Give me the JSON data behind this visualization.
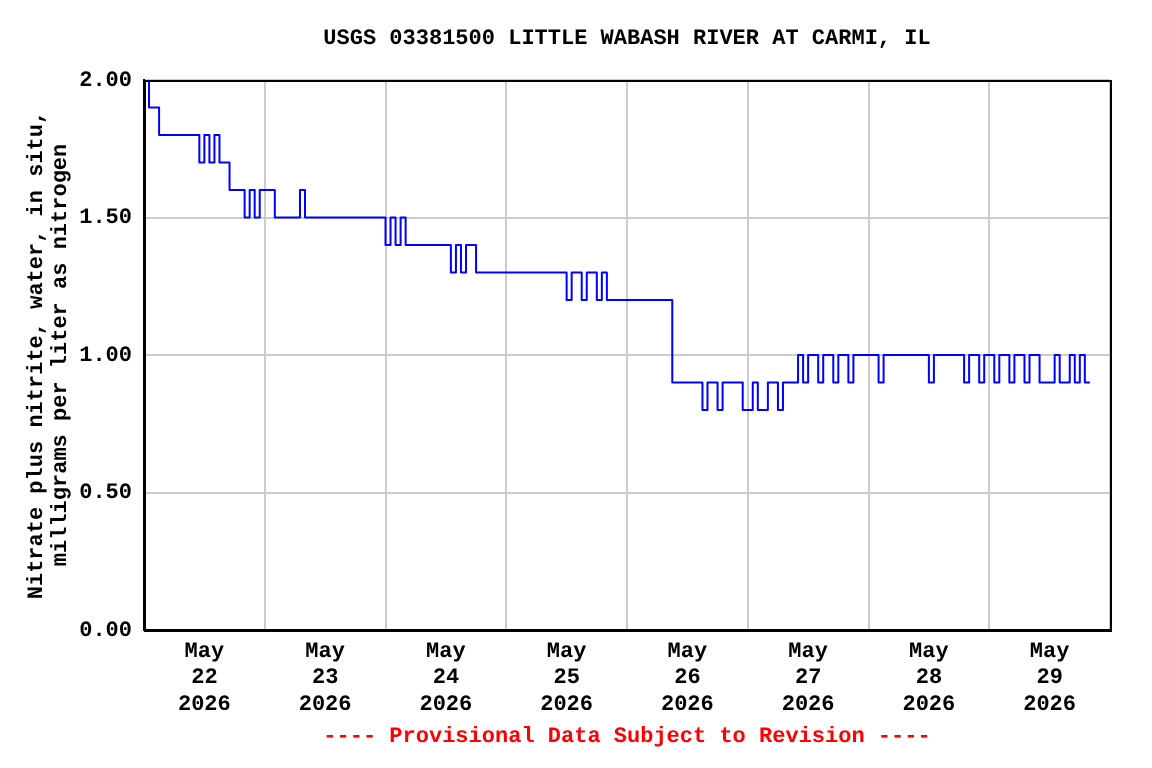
{
  "chart_data": {
    "type": "step",
    "title": "USGS 03381500 LITTLE WABASH RIVER AT CARMI, IL",
    "ylabel": "Nitrate plus nitrite, water, in situ, milligrams per liter as nitrogen",
    "annotations": [
      "---- Provisional Data Subject to Revision ----"
    ],
    "x": [
      "2026-05-22T00:00",
      "2026-05-22T01:00",
      "2026-05-22T03:00",
      "2026-05-22T11:00",
      "2026-05-22T12:00",
      "2026-05-22T13:00",
      "2026-05-22T14:00",
      "2026-05-22T15:00",
      "2026-05-22T17:00",
      "2026-05-22T20:00",
      "2026-05-22T21:00",
      "2026-05-22T22:00",
      "2026-05-22T23:00",
      "2026-05-23T02:00",
      "2026-05-23T07:00",
      "2026-05-23T08:00",
      "2026-05-24T00:00",
      "2026-05-24T01:00",
      "2026-05-24T02:00",
      "2026-05-24T03:00",
      "2026-05-24T04:00",
      "2026-05-24T13:00",
      "2026-05-24T14:00",
      "2026-05-24T15:00",
      "2026-05-24T16:00",
      "2026-05-24T18:00",
      "2026-05-25T12:00",
      "2026-05-25T13:00",
      "2026-05-25T15:00",
      "2026-05-25T16:00",
      "2026-05-25T18:00",
      "2026-05-25T19:00",
      "2026-05-25T20:00",
      "2026-05-26T09:00",
      "2026-05-26T15:00",
      "2026-05-26T16:00",
      "2026-05-26T18:00",
      "2026-05-26T19:00",
      "2026-05-26T23:00",
      "2026-05-27T01:00",
      "2026-05-27T02:00",
      "2026-05-27T04:00",
      "2026-05-27T06:00",
      "2026-05-27T07:00",
      "2026-05-27T10:00",
      "2026-05-27T11:00",
      "2026-05-27T12:00",
      "2026-05-27T14:00",
      "2026-05-27T15:00",
      "2026-05-27T17:00",
      "2026-05-27T18:00",
      "2026-05-27T20:00",
      "2026-05-27T21:00",
      "2026-05-28T02:00",
      "2026-05-28T03:00",
      "2026-05-28T12:00",
      "2026-05-28T13:00",
      "2026-05-28T19:00",
      "2026-05-28T20:00",
      "2026-05-28T22:00",
      "2026-05-28T23:00",
      "2026-05-29T01:00",
      "2026-05-29T02:00",
      "2026-05-29T04:00",
      "2026-05-29T05:00",
      "2026-05-29T07:00",
      "2026-05-29T08:00",
      "2026-05-29T10:00",
      "2026-05-29T13:00",
      "2026-05-29T14:00",
      "2026-05-29T16:00",
      "2026-05-29T17:00",
      "2026-05-29T18:00",
      "2026-05-29T19:00",
      "2026-05-29T20:00"
    ],
    "series": [
      {
        "color": "#0000ff",
        "values": [
          2.0,
          1.9,
          1.8,
          1.7,
          1.8,
          1.7,
          1.8,
          1.7,
          1.6,
          1.5,
          1.6,
          1.5,
          1.6,
          1.5,
          1.6,
          1.5,
          1.4,
          1.5,
          1.4,
          1.5,
          1.4,
          1.3,
          1.4,
          1.3,
          1.4,
          1.3,
          1.2,
          1.3,
          1.2,
          1.3,
          1.2,
          1.3,
          1.2,
          0.9,
          0.8,
          0.9,
          0.8,
          0.9,
          0.8,
          0.9,
          0.8,
          0.9,
          0.8,
          0.9,
          1.0,
          0.9,
          1.0,
          0.9,
          1.0,
          0.9,
          1.0,
          0.9,
          1.0,
          0.9,
          1.0,
          0.9,
          1.0,
          0.9,
          1.0,
          0.9,
          1.0,
          0.9,
          1.0,
          0.9,
          1.0,
          0.9,
          1.0,
          0.9,
          1.0,
          0.9,
          1.0,
          0.9,
          1.0,
          0.9,
          0.9
        ]
      }
    ],
    "xlim": [
      "2026-05-22T00:00",
      "2026-05-30T00:00"
    ],
    "xticks": [
      {
        "value": "2026-05-22T00:00",
        "label": null
      },
      {
        "value": "2026-05-22T12:00",
        "label": "May 22 2026"
      },
      {
        "value": "2026-05-23T00:00",
        "label": null
      },
      {
        "value": "2026-05-23T12:00",
        "label": "May 23 2026"
      },
      {
        "value": "2026-05-24T00:00",
        "label": null
      },
      {
        "value": "2026-05-24T12:00",
        "label": "May 24 2026"
      },
      {
        "value": "2026-05-25T00:00",
        "label": null
      },
      {
        "value": "2026-05-25T12:00",
        "label": "May 25 2026"
      },
      {
        "value": "2026-05-26T00:00",
        "label": null
      },
      {
        "value": "2026-05-26T12:00",
        "label": "May 26 2026"
      },
      {
        "value": "2026-05-27T00:00",
        "label": null
      },
      {
        "value": "2026-05-27T12:00",
        "label": "May 27 2026"
      },
      {
        "value": "2026-05-28T00:00",
        "label": null
      },
      {
        "value": "2026-05-28T12:00",
        "label": "May 28 2026"
      },
      {
        "value": "2026-05-29T00:00",
        "label": null
      },
      {
        "value": "2026-05-29T12:00",
        "label": "May 29 2026"
      },
      {
        "value": "2026-05-30T00:00",
        "label": null
      }
    ],
    "ylim": [
      0,
      2
    ],
    "yticks": [
      {
        "value": 0,
        "label": "0.00"
      },
      {
        "value": 0.5,
        "label": "0.50"
      },
      {
        "value": 1,
        "label": "1.00"
      },
      {
        "value": 1.5,
        "label": "1.50"
      },
      {
        "value": 2,
        "label": "2.00"
      }
    ],
    "grid": true,
    "legend": false,
    "marker": "none",
    "line_style": "solid"
  }
}
